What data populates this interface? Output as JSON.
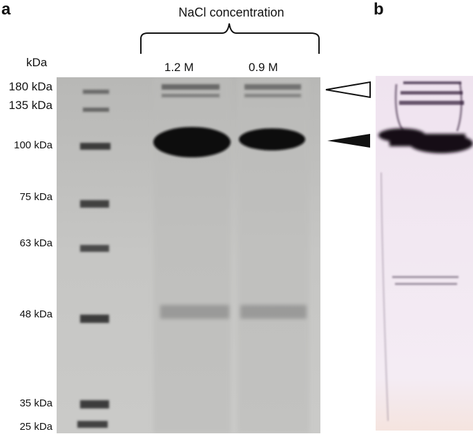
{
  "panel_a": {
    "letter": "a",
    "title": "NaCl concentration",
    "unit": "kDa",
    "lanes": [
      "1.2 M",
      "0.9 M"
    ],
    "markers": [
      "180 kDa",
      "135 kDa",
      "100 kDa",
      "75 kDa",
      "63 kDa",
      "48 kDa",
      "35 kDa",
      "25 kDa"
    ]
  },
  "panel_b": {
    "letter": "b"
  },
  "colors": {
    "gel_background": "#c4c4c2",
    "band": "#111111",
    "blot_background": "#f3e9f3",
    "blot_band": "#1a0c1f"
  }
}
